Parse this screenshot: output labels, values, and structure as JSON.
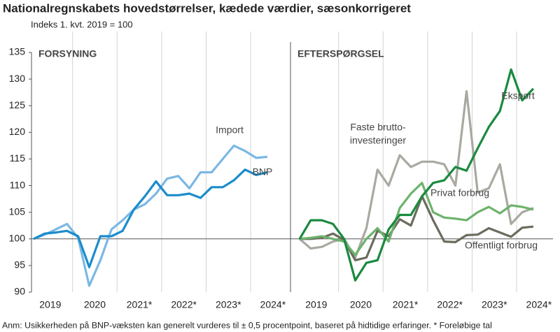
{
  "title": "Nationalregnskabets hovedstørrelser, kædede værdier, sæsonkorrigeret",
  "subtitle": "Indeks 1. kvt. 2019 = 100",
  "footnote": "Anm: Usikkerheden på BNP-væksten kan generelt vurderes til ± 0,5 procentpoint, baseret på hidtidige erfaringer. * Foreløbige tal",
  "chart_data": [
    {
      "type": "line",
      "title": "FORSYNING",
      "x_labels": [
        "2019",
        "2020",
        "2021*",
        "2022*",
        "2023*",
        "2024*"
      ],
      "ylim": [
        90,
        135
      ],
      "yticks": [
        90,
        95,
        100,
        105,
        110,
        115,
        120,
        125,
        130,
        135
      ],
      "series": [
        {
          "label": [
            "Import"
          ],
          "color": "#7ab8e4",
          "values": [
            100,
            100.8,
            101.8,
            102.8,
            100.2,
            91.2,
            96,
            101.8,
            103.5,
            105.5,
            106.5,
            108.5,
            111.3,
            111.8,
            109.5,
            112.5,
            112.5,
            115,
            117.5,
            116.5,
            115.2,
            115.4
          ]
        },
        {
          "label": [
            "BNP"
          ],
          "color": "#1b8ccc",
          "values": [
            100,
            101,
            101.2,
            101.5,
            100.5,
            94.7,
            100.5,
            100.5,
            101.5,
            105.5,
            108,
            110.8,
            108.2,
            108.2,
            108.5,
            107.7,
            109.7,
            109.7,
            111,
            113,
            112,
            112.5
          ]
        }
      ]
    },
    {
      "type": "line",
      "title": "EFTERSPØRGSEL",
      "x_labels": [
        "2019",
        "2020",
        "2021*",
        "2022*",
        "2023*",
        "2024*"
      ],
      "ylim": [
        90,
        135
      ],
      "series": [
        {
          "label": [
            "Faste brutto-",
            "investeringer"
          ],
          "color": "#a9a9a1",
          "values": [
            100,
            98.2,
            98.5,
            99.5,
            100,
            96.5,
            102,
            113,
            110,
            115.7,
            113.5,
            114.5,
            114.5,
            114,
            110,
            127.7,
            108.7,
            109.5,
            114,
            102.8,
            105,
            105.8
          ]
        },
        {
          "label": [
            "Offentligt forbrug"
          ],
          "color": "#6b6b5e",
          "values": [
            100,
            100,
            100.2,
            101,
            99.8,
            96,
            96.5,
            101.5,
            100.5,
            103.7,
            102.5,
            108,
            103.5,
            99.5,
            99.4,
            100.7,
            100.8,
            102,
            101.2,
            100.4,
            102.1,
            102.3
          ]
        },
        {
          "label": [
            "Privat forbrug"
          ],
          "color": "#6cb36c",
          "values": [
            100,
            100.2,
            100.5,
            100,
            99.5,
            97,
            100,
            102,
            99.5,
            105.8,
            108.5,
            110.5,
            105,
            104,
            103.8,
            103.5,
            105,
            106,
            104.8,
            106.3,
            106,
            105.5
          ]
        },
        {
          "label": [
            "Eksport"
          ],
          "color": "#1a8a3f",
          "values": [
            100,
            103.5,
            103.5,
            102.8,
            100,
            92.2,
            95.5,
            96,
            101.8,
            104.5,
            104.5,
            108,
            110.5,
            111,
            113.5,
            112.8,
            117,
            121,
            124,
            131.8,
            126,
            128.2
          ]
        }
      ]
    }
  ]
}
